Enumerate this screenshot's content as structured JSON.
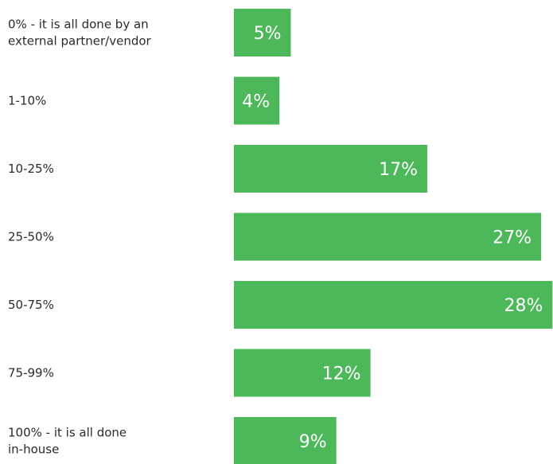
{
  "chart_data": {
    "type": "bar",
    "orientation": "horizontal",
    "categories": [
      [
        "0% - it is all done by an",
        "external partner/vendor"
      ],
      [
        "1-10%"
      ],
      [
        "10-25%"
      ],
      [
        "25-50%"
      ],
      [
        "50-75%"
      ],
      [
        "75-99%"
      ],
      [
        "100% - it is all done",
        "in-house"
      ]
    ],
    "values": [
      5,
      4,
      17,
      27,
      28,
      12,
      9
    ],
    "value_labels": [
      "5%",
      "4%",
      "17%",
      "27%",
      "28%",
      "12%",
      "9%"
    ],
    "bar_color": "#4db85a",
    "value_label_color": "#ffffff",
    "category_label_color": "#2b2b2b",
    "grid": false,
    "legend": "none"
  }
}
